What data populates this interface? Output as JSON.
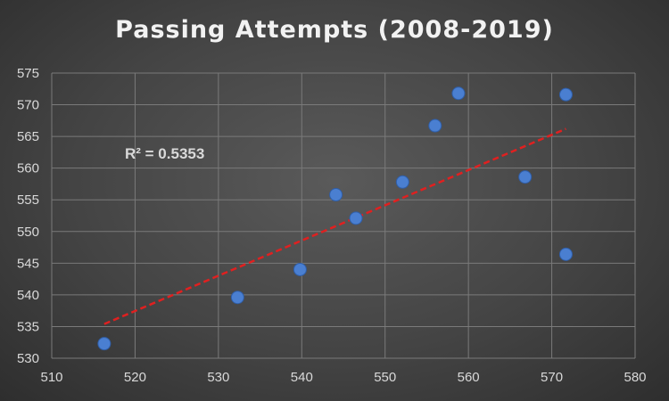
{
  "chart_data": {
    "type": "scatter",
    "title": "Passing Attempts (2008-2019)",
    "xlabel": "",
    "ylabel": "",
    "xlim": [
      510,
      580
    ],
    "ylim": [
      530,
      575
    ],
    "xticks": [
      510,
      520,
      530,
      540,
      550,
      560,
      570,
      580
    ],
    "yticks": [
      530,
      535,
      540,
      545,
      550,
      555,
      560,
      565,
      570,
      575
    ],
    "grid": true,
    "legend": "none",
    "series": [
      {
        "points": [
          {
            "x": 516.3,
            "y": 532.3
          },
          {
            "x": 532.3,
            "y": 539.6
          },
          {
            "x": 539.8,
            "y": 544.0
          },
          {
            "x": 544.1,
            "y": 555.8
          },
          {
            "x": 546.5,
            "y": 552.1
          },
          {
            "x": 552.1,
            "y": 557.8
          },
          {
            "x": 556.0,
            "y": 566.7
          },
          {
            "x": 558.8,
            "y": 571.8
          },
          {
            "x": 566.8,
            "y": 558.6
          },
          {
            "x": 571.7,
            "y": 571.6
          },
          {
            "x": 571.7,
            "y": 546.4
          }
        ],
        "color": "#4a7fd1"
      }
    ],
    "trendline": {
      "type": "linear",
      "x_range": [
        516.3,
        571.7
      ],
      "y_range": [
        535.4,
        566.2
      ],
      "color": "#e02020",
      "style": "dashed"
    },
    "annotation": "R² = 0.5353"
  }
}
